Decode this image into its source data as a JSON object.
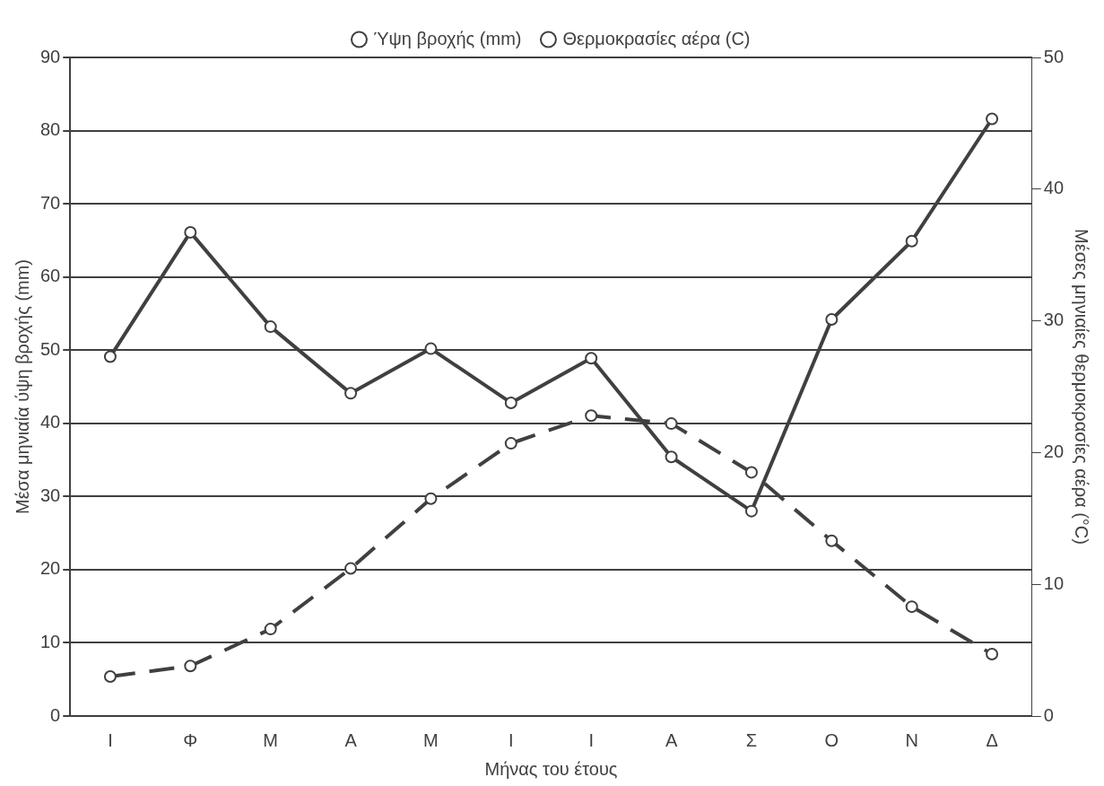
{
  "chart_data": {
    "type": "line",
    "xlabel": "Μήνας του έτους",
    "ylabel": "Μέσα μηνιαία ύψη βροχής (mm)",
    "y2label": "Μέσες μηνιαίες θερμοκρασίες αέρα (°C)",
    "categories": [
      "Ι",
      "Φ",
      "Μ",
      "Α",
      "Μ",
      "Ι",
      "Ι",
      "Α",
      "Σ",
      "Ο",
      "Ν",
      "Δ"
    ],
    "series": [
      {
        "name": "Ύψη βροχής (mm)",
        "color": "#404040",
        "line_style": "solid",
        "values": [
          49.1,
          66.1,
          53.2,
          44.1,
          50.2,
          42.8,
          48.9,
          35.4,
          28.0,
          54.2,
          64.9,
          81.6
        ]
      },
      {
        "name": "Θερμοκρασίες αέρα (C)",
        "color": "#404040",
        "line_style": "dashed",
        "axis": "y2",
        "values": [
          3.0,
          3.8,
          6.6,
          11.2,
          16.5,
          20.7,
          22.8,
          22.2,
          18.5,
          13.3,
          8.3,
          4.7
        ]
      }
    ],
    "ylim": [
      0,
      90
    ],
    "yticks": [
      0,
      10,
      20,
      30,
      40,
      50,
      60,
      70,
      80,
      90
    ],
    "y2lim": [
      0,
      50
    ],
    "y2ticks": [
      0,
      10,
      20,
      30,
      40,
      50
    ],
    "grid": "y",
    "legend": "top",
    "marker": "circle"
  }
}
